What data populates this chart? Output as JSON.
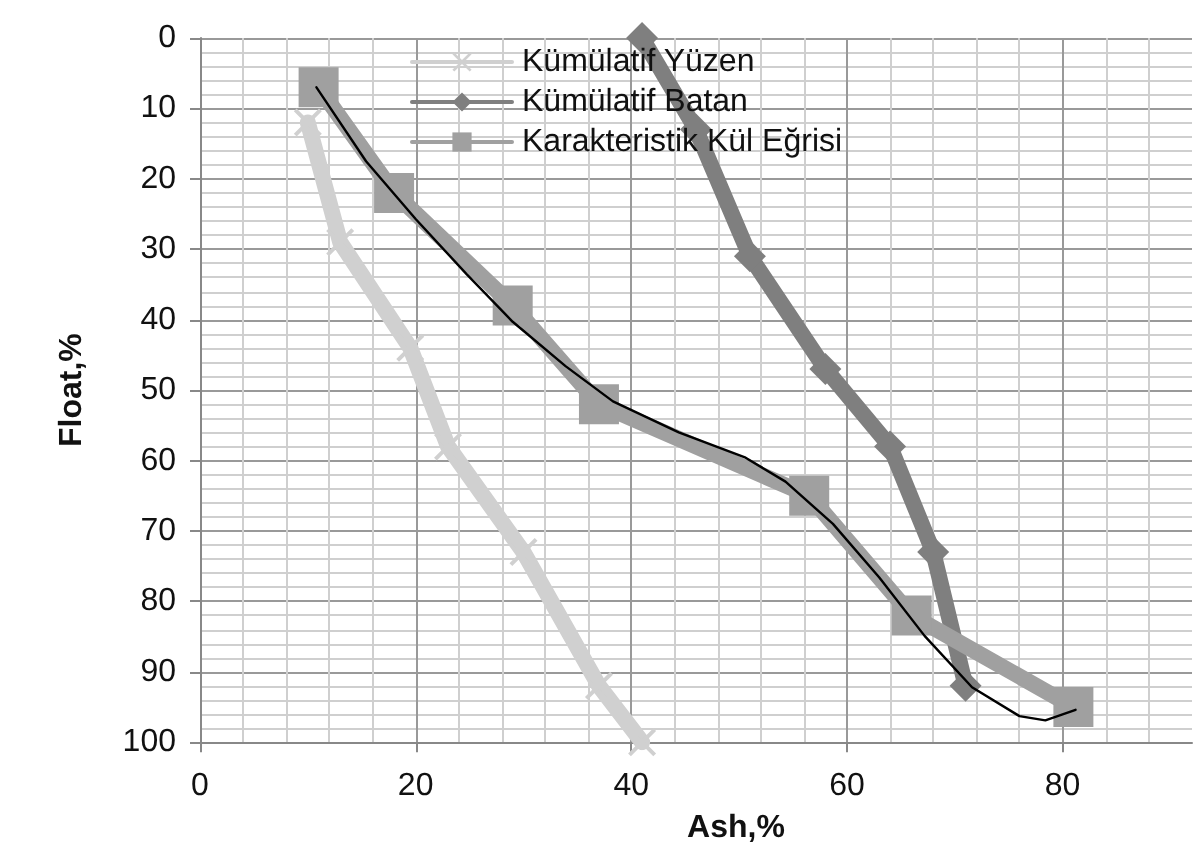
{
  "chart_data": {
    "type": "line",
    "xlabel": "Ash,%",
    "ylabel": "Float,%",
    "xlim": [
      0,
      92
    ],
    "xticks": [
      0,
      20,
      40,
      60,
      80
    ],
    "ylim": [
      100,
      0
    ],
    "yticks": [
      0,
      10,
      20,
      30,
      40,
      50,
      60,
      70,
      80,
      90,
      100
    ],
    "grid": true,
    "legend": "top",
    "series": [
      {
        "name": "Kümülatif Yüzen",
        "color": "#d0d0d0",
        "marker": "cross",
        "x": [
          10,
          13,
          19.5,
          23,
          30,
          37,
          41
        ],
        "values": [
          12,
          29,
          44,
          58,
          73,
          92,
          100
        ]
      },
      {
        "name": "Kümülatif Batan",
        "color": "#7f7f7f",
        "marker": "diamond",
        "x": [
          41,
          46,
          51,
          58,
          64,
          68,
          71
        ],
        "values": [
          0,
          13,
          31,
          47,
          58,
          73,
          92
        ]
      },
      {
        "name": "Karakteristik Kül Eğrisi",
        "color": "#a0a0a0",
        "marker": "square",
        "x": [
          11,
          18,
          29,
          37,
          56.5,
          66,
          81
        ],
        "values": [
          7,
          22,
          38,
          52,
          65,
          82,
          95
        ]
      },
      {
        "color": "#000000",
        "marker": "none",
        "x": [
          10.8,
          15.4,
          20,
          24.7,
          29,
          33.9,
          38.3,
          44.4,
          50.6,
          54.3,
          58.7,
          63,
          67.2,
          71.6,
          76,
          78.4,
          81.2
        ],
        "values": [
          7,
          17.5,
          25.7,
          33.5,
          40.3,
          46.6,
          51.6,
          56,
          59.6,
          63,
          69,
          76.6,
          84.9,
          92.2,
          96.3,
          96.9,
          95.4
        ]
      }
    ]
  }
}
